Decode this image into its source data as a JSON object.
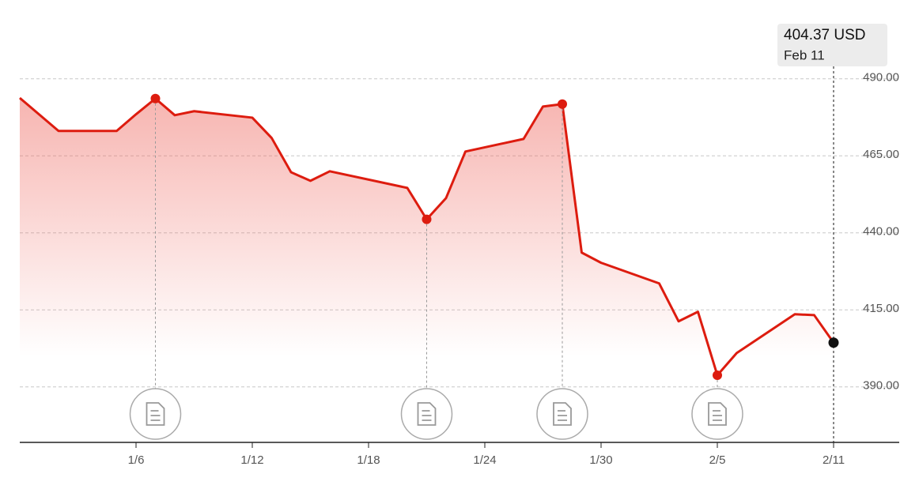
{
  "chart_data": {
    "type": "area",
    "x": [
      "12/31",
      "1/2",
      "1/5",
      "1/6",
      "1/7",
      "1/8",
      "1/9",
      "1/12",
      "1/13",
      "1/14",
      "1/15",
      "1/16",
      "1/20",
      "1/21",
      "1/22",
      "1/23",
      "1/26",
      "1/27",
      "1/28",
      "1/29",
      "1/30",
      "2/2",
      "2/3",
      "2/4",
      "2/5",
      "2/6",
      "2/9",
      "2/10",
      "2/11"
    ],
    "values": [
      483.8,
      473.1,
      473.1,
      478.5,
      483.6,
      478.2,
      479.5,
      477.4,
      470.8,
      459.7,
      456.9,
      460.0,
      454.6,
      444.4,
      451.3,
      466.4,
      470.5,
      481.0,
      481.8,
      433.6,
      430.3,
      423.6,
      411.3,
      414.4,
      393.8,
      401.0,
      413.6,
      413.3,
      404.37
    ],
    "color": "#dd1c0f",
    "xlim": [
      "12/31",
      "2/14"
    ],
    "xticks": [
      "1/6",
      "1/12",
      "1/18",
      "1/24",
      "1/30",
      "2/5",
      "2/11"
    ],
    "ylim": [
      372,
      510
    ],
    "yticks": [
      {
        "value": 390,
        "label": "390.00"
      },
      {
        "value": 415,
        "label": "415.00"
      },
      {
        "value": 440,
        "label": "440.00"
      },
      {
        "value": 465,
        "label": "465.00"
      },
      {
        "value": 490,
        "label": "490.00"
      }
    ],
    "grid": true,
    "event_dates": [
      "1/7",
      "1/21",
      "1/28",
      "2/5"
    ],
    "tooltip": {
      "value_label": "404.37 USD",
      "date": "Feb 11"
    }
  }
}
